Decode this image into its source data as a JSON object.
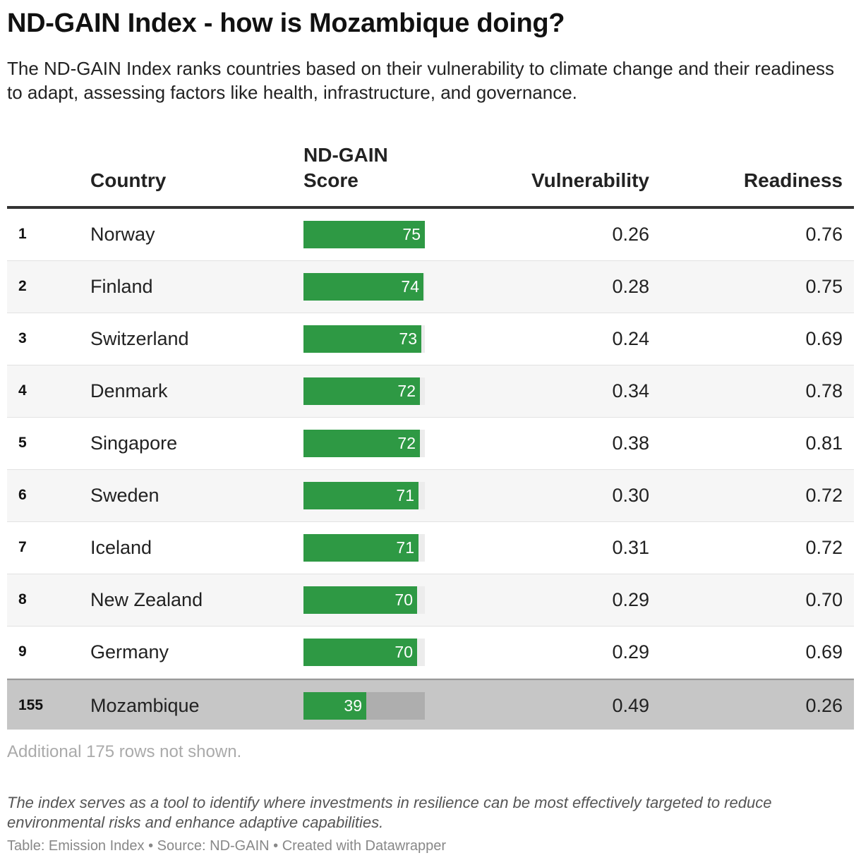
{
  "title": "ND-GAIN Index - how is Mozambique doing?",
  "subtitle": "The ND-GAIN Index ranks countries based on their vulnerability to climate change and their readiness to adapt, assessing factors like health, infrastructure, and governance.",
  "chart_data": {
    "type": "table",
    "columns": [
      "",
      "Country",
      "ND-GAIN\nScore",
      "Vulnerability",
      "Readiness"
    ],
    "score_max": 75,
    "rows": [
      {
        "rank": "1",
        "country": "Norway",
        "score": 75,
        "vulnerability": "0.26",
        "readiness": "0.76",
        "highlight": false
      },
      {
        "rank": "2",
        "country": "Finland",
        "score": 74,
        "vulnerability": "0.28",
        "readiness": "0.75",
        "highlight": false
      },
      {
        "rank": "3",
        "country": "Switzerland",
        "score": 73,
        "vulnerability": "0.24",
        "readiness": "0.69",
        "highlight": false
      },
      {
        "rank": "4",
        "country": "Denmark",
        "score": 72,
        "vulnerability": "0.34",
        "readiness": "0.78",
        "highlight": false
      },
      {
        "rank": "5",
        "country": "Singapore",
        "score": 72,
        "vulnerability": "0.38",
        "readiness": "0.81",
        "highlight": false
      },
      {
        "rank": "6",
        "country": "Sweden",
        "score": 71,
        "vulnerability": "0.30",
        "readiness": "0.72",
        "highlight": false
      },
      {
        "rank": "7",
        "country": "Iceland",
        "score": 71,
        "vulnerability": "0.31",
        "readiness": "0.72",
        "highlight": false
      },
      {
        "rank": "8",
        "country": "New Zealand",
        "score": 70,
        "vulnerability": "0.29",
        "readiness": "0.70",
        "highlight": false
      },
      {
        "rank": "9",
        "country": "Germany",
        "score": 70,
        "vulnerability": "0.29",
        "readiness": "0.69",
        "highlight": false
      },
      {
        "rank": "155",
        "country": "Mozambique",
        "score": 39,
        "vulnerability": "0.49",
        "readiness": "0.26",
        "highlight": true
      }
    ],
    "bar_color": "#2e9944",
    "highlight_row_color": "#c6c6c6"
  },
  "more_rows_note": "Additional 175 rows not shown.",
  "notes": "The index serves as a tool to identify where investments in resilience can be most effectively targeted to reduce environmental risks and enhance adaptive capabilities.",
  "credit": "Table: Emission Index • Source: ND-GAIN • Created with Datawrapper"
}
